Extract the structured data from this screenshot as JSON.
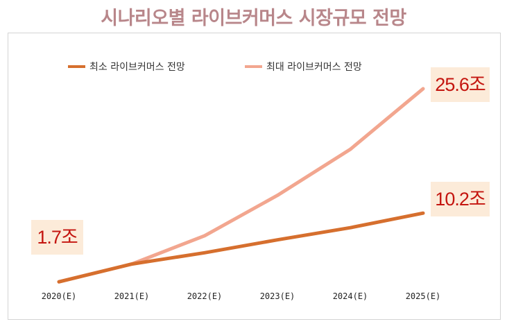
{
  "chart_data": {
    "type": "line",
    "title": "시나리오별 라이브커머스 시장규모 전망",
    "categories": [
      "2020(E)",
      "2021(E)",
      "2022(E)",
      "2023(E)",
      "2024(E)",
      "2025(E)"
    ],
    "series": [
      {
        "name": "최소 라이브커머스 전망",
        "color": "#d66f2e",
        "values": [
          1.7,
          3.9,
          5.3,
          6.9,
          8.4,
          10.2
        ]
      },
      {
        "name": "최대 라이브커머스 전망",
        "color": "#f2a68f",
        "values": [
          1.7,
          3.9,
          7.4,
          12.4,
          18.1,
          25.6
        ]
      }
    ],
    "ylim": [
      0,
      28
    ],
    "grid": false,
    "legend_position": "top-left",
    "annotations": [
      {
        "label": "1.7조",
        "target": "start"
      },
      {
        "label": "25.6조",
        "target": "최대 라이브커머스 전망"
      },
      {
        "label": "10.2조",
        "target": "최소 라이브커머스 전망"
      }
    ]
  }
}
